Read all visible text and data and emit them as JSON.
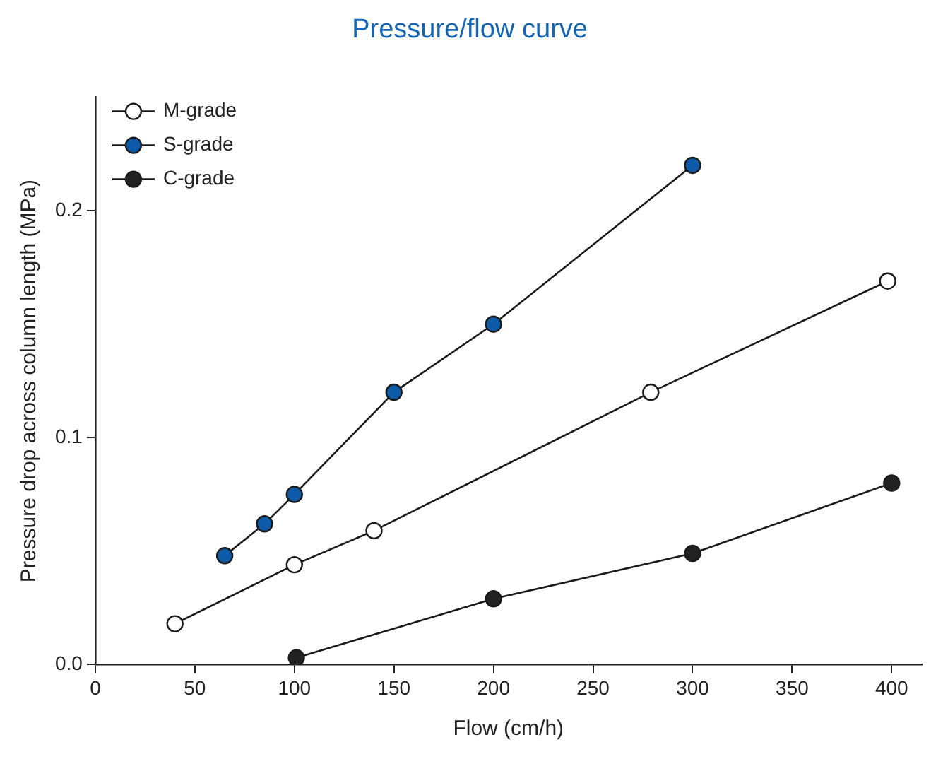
{
  "chart_data": {
    "type": "line",
    "title": "Pressure/flow curve",
    "xlabel": "Flow (cm/h)",
    "ylabel": "Pressure drop across column length (MPa)",
    "xlim": [
      0,
      415
    ],
    "xticks": [
      0,
      50,
      100,
      150,
      200,
      250,
      300,
      350,
      400
    ],
    "ylim": [
      0,
      0.25
    ],
    "yticks": [
      {
        "value": 0,
        "label": "0.0"
      },
      0.1,
      0.2
    ],
    "legend": "top left",
    "grid": false,
    "marker": "circle",
    "line_style": "solid",
    "series": [
      {
        "name": "M-grade",
        "color": "#ffffff",
        "x": [
          40,
          100,
          140,
          279,
          398
        ],
        "values": [
          0.018,
          0.044,
          0.059,
          0.12,
          0.169
        ]
      },
      {
        "name": "S-grade",
        "color": "#0d5ba8",
        "x": [
          65,
          85,
          100,
          150,
          200,
          300
        ],
        "values": [
          0.048,
          0.062,
          0.075,
          0.12,
          0.15,
          0.22
        ]
      },
      {
        "name": "C-grade",
        "color": "#222222",
        "x": [
          101,
          200,
          300,
          400
        ],
        "values": [
          0.003,
          0.029,
          0.049,
          0.08
        ]
      }
    ]
  }
}
